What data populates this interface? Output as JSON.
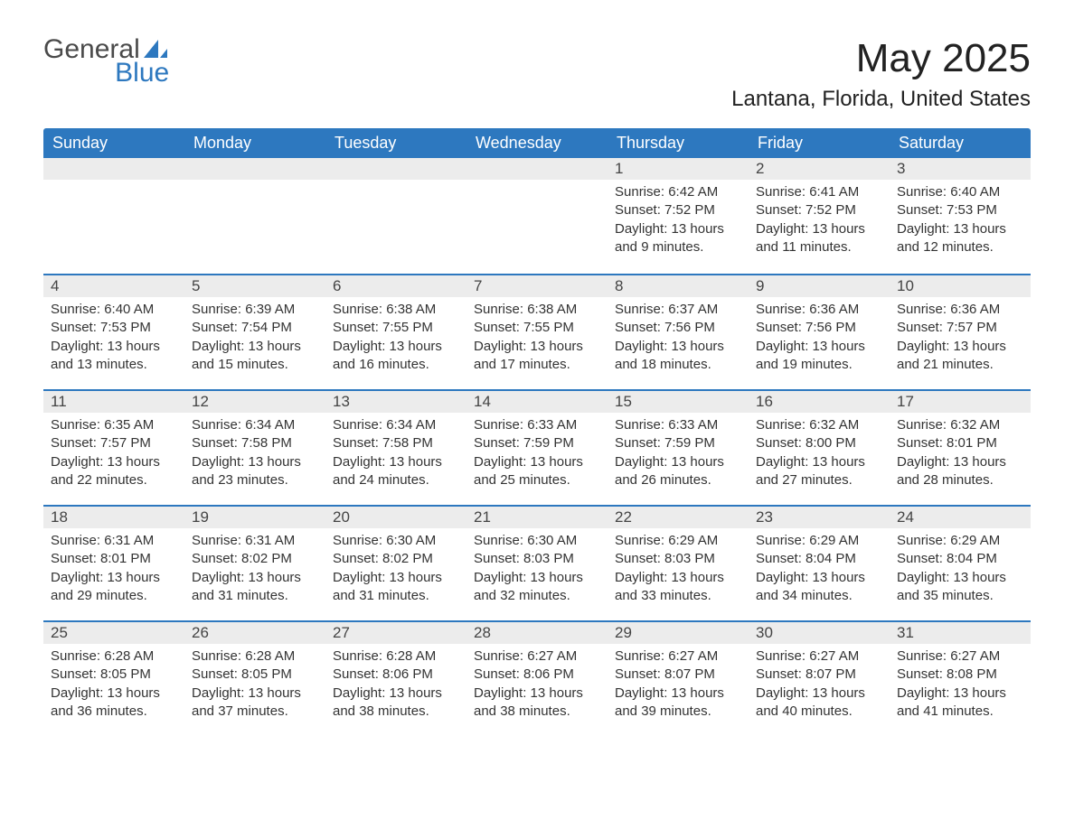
{
  "logo": {
    "text_general": "General",
    "text_blue": "Blue",
    "sail_color": "#2d78bf"
  },
  "title": "May 2025",
  "location": "Lantana, Florida, United States",
  "header_bg": "#2d78bf",
  "header_text_color": "#ffffff",
  "daynum_bg": "#ececec",
  "daynum_border": "#2d78bf",
  "body_text_color": "#333333",
  "days_of_week": [
    "Sunday",
    "Monday",
    "Tuesday",
    "Wednesday",
    "Thursday",
    "Friday",
    "Saturday"
  ],
  "weeks": [
    [
      null,
      null,
      null,
      null,
      {
        "n": "1",
        "sr": "Sunrise: 6:42 AM",
        "ss": "Sunset: 7:52 PM",
        "dl": "Daylight: 13 hours and 9 minutes."
      },
      {
        "n": "2",
        "sr": "Sunrise: 6:41 AM",
        "ss": "Sunset: 7:52 PM",
        "dl": "Daylight: 13 hours and 11 minutes."
      },
      {
        "n": "3",
        "sr": "Sunrise: 6:40 AM",
        "ss": "Sunset: 7:53 PM",
        "dl": "Daylight: 13 hours and 12 minutes."
      }
    ],
    [
      {
        "n": "4",
        "sr": "Sunrise: 6:40 AM",
        "ss": "Sunset: 7:53 PM",
        "dl": "Daylight: 13 hours and 13 minutes."
      },
      {
        "n": "5",
        "sr": "Sunrise: 6:39 AM",
        "ss": "Sunset: 7:54 PM",
        "dl": "Daylight: 13 hours and 15 minutes."
      },
      {
        "n": "6",
        "sr": "Sunrise: 6:38 AM",
        "ss": "Sunset: 7:55 PM",
        "dl": "Daylight: 13 hours and 16 minutes."
      },
      {
        "n": "7",
        "sr": "Sunrise: 6:38 AM",
        "ss": "Sunset: 7:55 PM",
        "dl": "Daylight: 13 hours and 17 minutes."
      },
      {
        "n": "8",
        "sr": "Sunrise: 6:37 AM",
        "ss": "Sunset: 7:56 PM",
        "dl": "Daylight: 13 hours and 18 minutes."
      },
      {
        "n": "9",
        "sr": "Sunrise: 6:36 AM",
        "ss": "Sunset: 7:56 PM",
        "dl": "Daylight: 13 hours and 19 minutes."
      },
      {
        "n": "10",
        "sr": "Sunrise: 6:36 AM",
        "ss": "Sunset: 7:57 PM",
        "dl": "Daylight: 13 hours and 21 minutes."
      }
    ],
    [
      {
        "n": "11",
        "sr": "Sunrise: 6:35 AM",
        "ss": "Sunset: 7:57 PM",
        "dl": "Daylight: 13 hours and 22 minutes."
      },
      {
        "n": "12",
        "sr": "Sunrise: 6:34 AM",
        "ss": "Sunset: 7:58 PM",
        "dl": "Daylight: 13 hours and 23 minutes."
      },
      {
        "n": "13",
        "sr": "Sunrise: 6:34 AM",
        "ss": "Sunset: 7:58 PM",
        "dl": "Daylight: 13 hours and 24 minutes."
      },
      {
        "n": "14",
        "sr": "Sunrise: 6:33 AM",
        "ss": "Sunset: 7:59 PM",
        "dl": "Daylight: 13 hours and 25 minutes."
      },
      {
        "n": "15",
        "sr": "Sunrise: 6:33 AM",
        "ss": "Sunset: 7:59 PM",
        "dl": "Daylight: 13 hours and 26 minutes."
      },
      {
        "n": "16",
        "sr": "Sunrise: 6:32 AM",
        "ss": "Sunset: 8:00 PM",
        "dl": "Daylight: 13 hours and 27 minutes."
      },
      {
        "n": "17",
        "sr": "Sunrise: 6:32 AM",
        "ss": "Sunset: 8:01 PM",
        "dl": "Daylight: 13 hours and 28 minutes."
      }
    ],
    [
      {
        "n": "18",
        "sr": "Sunrise: 6:31 AM",
        "ss": "Sunset: 8:01 PM",
        "dl": "Daylight: 13 hours and 29 minutes."
      },
      {
        "n": "19",
        "sr": "Sunrise: 6:31 AM",
        "ss": "Sunset: 8:02 PM",
        "dl": "Daylight: 13 hours and 31 minutes."
      },
      {
        "n": "20",
        "sr": "Sunrise: 6:30 AM",
        "ss": "Sunset: 8:02 PM",
        "dl": "Daylight: 13 hours and 31 minutes."
      },
      {
        "n": "21",
        "sr": "Sunrise: 6:30 AM",
        "ss": "Sunset: 8:03 PM",
        "dl": "Daylight: 13 hours and 32 minutes."
      },
      {
        "n": "22",
        "sr": "Sunrise: 6:29 AM",
        "ss": "Sunset: 8:03 PM",
        "dl": "Daylight: 13 hours and 33 minutes."
      },
      {
        "n": "23",
        "sr": "Sunrise: 6:29 AM",
        "ss": "Sunset: 8:04 PM",
        "dl": "Daylight: 13 hours and 34 minutes."
      },
      {
        "n": "24",
        "sr": "Sunrise: 6:29 AM",
        "ss": "Sunset: 8:04 PM",
        "dl": "Daylight: 13 hours and 35 minutes."
      }
    ],
    [
      {
        "n": "25",
        "sr": "Sunrise: 6:28 AM",
        "ss": "Sunset: 8:05 PM",
        "dl": "Daylight: 13 hours and 36 minutes."
      },
      {
        "n": "26",
        "sr": "Sunrise: 6:28 AM",
        "ss": "Sunset: 8:05 PM",
        "dl": "Daylight: 13 hours and 37 minutes."
      },
      {
        "n": "27",
        "sr": "Sunrise: 6:28 AM",
        "ss": "Sunset: 8:06 PM",
        "dl": "Daylight: 13 hours and 38 minutes."
      },
      {
        "n": "28",
        "sr": "Sunrise: 6:27 AM",
        "ss": "Sunset: 8:06 PM",
        "dl": "Daylight: 13 hours and 38 minutes."
      },
      {
        "n": "29",
        "sr": "Sunrise: 6:27 AM",
        "ss": "Sunset: 8:07 PM",
        "dl": "Daylight: 13 hours and 39 minutes."
      },
      {
        "n": "30",
        "sr": "Sunrise: 6:27 AM",
        "ss": "Sunset: 8:07 PM",
        "dl": "Daylight: 13 hours and 40 minutes."
      },
      {
        "n": "31",
        "sr": "Sunrise: 6:27 AM",
        "ss": "Sunset: 8:08 PM",
        "dl": "Daylight: 13 hours and 41 minutes."
      }
    ]
  ]
}
